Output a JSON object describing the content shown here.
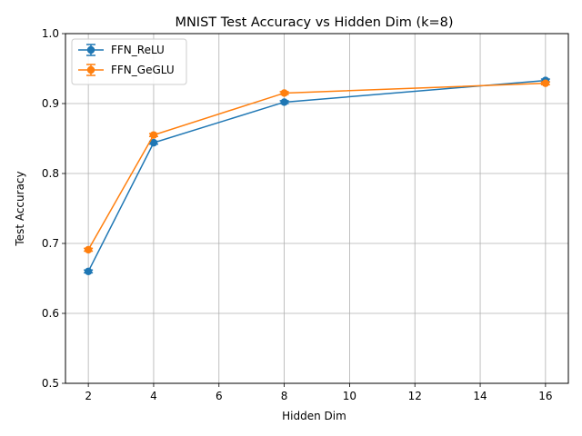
{
  "chart_data": {
    "type": "line",
    "title": "MNIST Test Accuracy vs Hidden Dim (k=8)",
    "xlabel": "Hidden Dim",
    "ylabel": "Test Accuracy",
    "xlim": [
      1.3,
      16.7
    ],
    "ylim": [
      0.5,
      1.0
    ],
    "xticks": [
      2,
      4,
      6,
      8,
      10,
      12,
      14,
      16
    ],
    "yticks": [
      0.5,
      0.6,
      0.7,
      0.8,
      0.9,
      1.0
    ],
    "xtick_labels": [
      "2",
      "4",
      "6",
      "8",
      "10",
      "12",
      "14",
      "16"
    ],
    "ytick_labels": [
      "0.5",
      "0.6",
      "0.7",
      "0.8",
      "0.9",
      "1.0"
    ],
    "grid": true,
    "legend_position": "top-left",
    "x": [
      2,
      4,
      8,
      16
    ],
    "series": [
      {
        "name": "FFN_ReLU",
        "color": "#1f77b4",
        "values": [
          0.66,
          0.844,
          0.902,
          0.933
        ],
        "errors": [
          0.002,
          0.002,
          0.002,
          0.002
        ]
      },
      {
        "name": "FFN_GeGLU",
        "color": "#ff7f0e",
        "values": [
          0.691,
          0.855,
          0.915,
          0.929
        ],
        "errors": [
          0.002,
          0.002,
          0.002,
          0.002
        ]
      }
    ]
  }
}
